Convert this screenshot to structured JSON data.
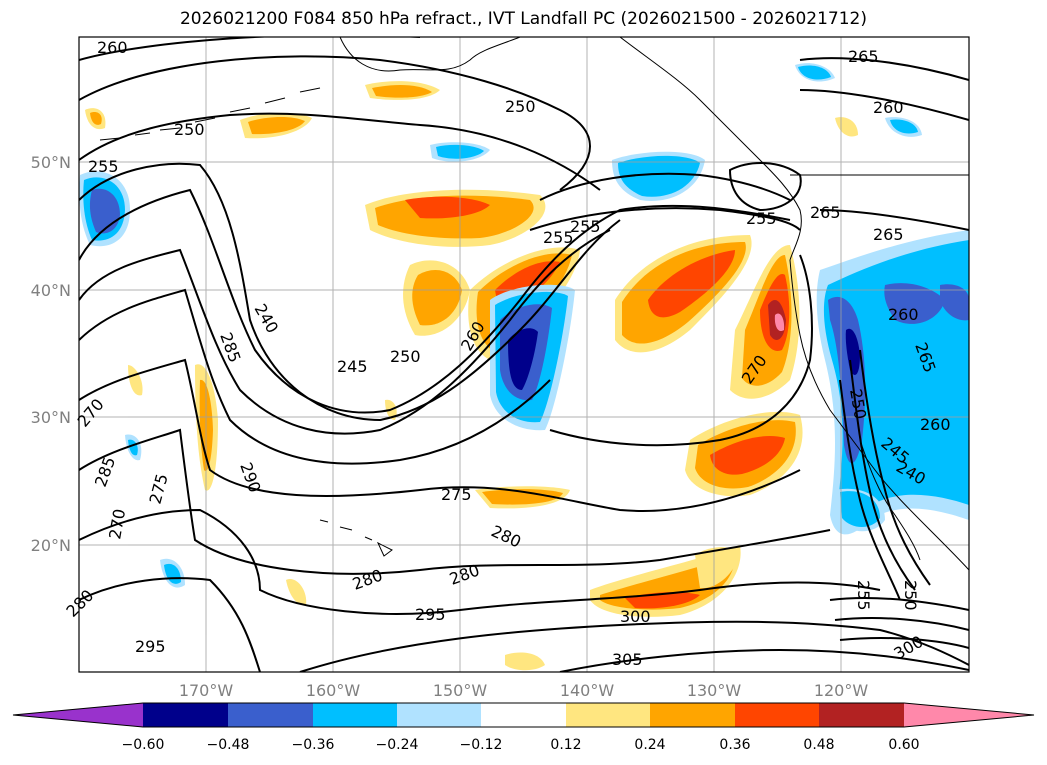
{
  "title": "2026021200 F084 850 hPa refract., IVT Landfall PC (2026021500 - 2026021712)",
  "map": {
    "lon_ticks": [
      "170°W",
      "160°W",
      "150°W",
      "140°W",
      "130°W",
      "120°W"
    ],
    "lat_ticks": [
      "50°N",
      "40°N",
      "30°N",
      "20°N"
    ],
    "contour_labels": [
      "260",
      "265",
      "250",
      "260",
      "255",
      "250",
      "255",
      "255",
      "265",
      "265",
      "255",
      "240",
      "245",
      "250",
      "260",
      "270",
      "285",
      "270",
      "285",
      "290",
      "275",
      "275",
      "280",
      "280",
      "280",
      "295",
      "295",
      "300",
      "305",
      "260",
      "265",
      "255",
      "250",
      "300",
      "260",
      "250",
      "245",
      "240",
      "280",
      "270"
    ]
  },
  "colorbar": {
    "tick_labels": [
      "−0.60",
      "−0.48",
      "−0.36",
      "−0.24",
      "−0.12",
      "0.12",
      "0.24",
      "0.36",
      "0.48",
      "0.60"
    ],
    "colors": [
      "#9932CC",
      "#00008B",
      "#3A5FCD",
      "#00BFFF",
      "#B0E2FF",
      "#FFFFFF",
      "#FFE680",
      "#FFA500",
      "#FF4500",
      "#B22222",
      "#FF88AA"
    ]
  }
}
